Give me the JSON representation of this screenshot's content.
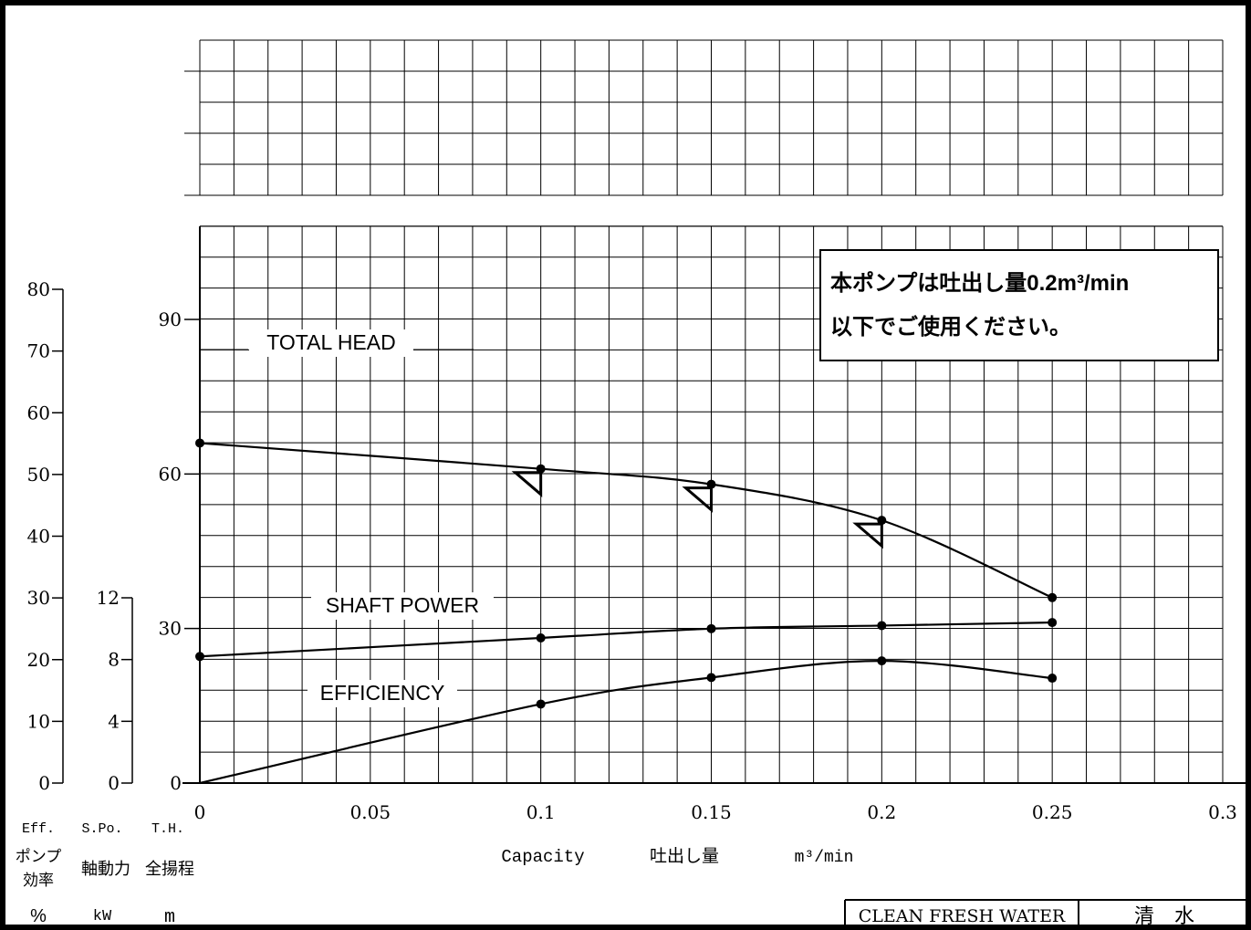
{
  "chart_data": {
    "type": "line",
    "x": [
      0,
      0.1,
      0.15,
      0.2,
      0.25
    ],
    "x_ticks": [
      "0",
      "0.05",
      "0.1",
      "0.15",
      "0.2",
      "0.25",
      "0.3"
    ],
    "xlim": [
      0,
      0.3
    ],
    "xlabel_en": "Capacity",
    "xlabel_jp": "吐出し量",
    "xlabel_unit": "m³/min",
    "axes": {
      "eff": {
        "ticks": [
          "0",
          "10",
          "20",
          "30",
          "40",
          "50",
          "60",
          "70",
          "80"
        ],
        "label": "Eff.",
        "jp": "ポンプ効率",
        "unit": "%",
        "range": [
          0,
          80
        ]
      },
      "spo": {
        "ticks": [
          "0",
          "4",
          "8",
          "12"
        ],
        "label": "S.Po.",
        "jp": "軸動力",
        "unit": "kW",
        "range": [
          0,
          12
        ]
      },
      "th": {
        "ticks": [
          "0",
          "30",
          "60",
          "90"
        ],
        "label": "T.H.",
        "jp": "全揚程",
        "unit": "m",
        "range": [
          0,
          90
        ]
      }
    },
    "series": [
      {
        "name": "TOTAL HEAD",
        "axis": "th",
        "values": [
          66,
          61,
          58,
          51,
          36
        ]
      },
      {
        "name": "SHAFT POWER",
        "axis": "spo",
        "values": [
          8.2,
          9.4,
          10.0,
          10.2,
          10.4
        ]
      },
      {
        "name": "EFFICIENCY",
        "axis": "eff",
        "values": [
          0,
          12.8,
          17.1,
          19.8,
          17.0
        ]
      }
    ],
    "triangle_marks_x": [
      0.1,
      0.15,
      0.2
    ]
  },
  "notice": {
    "line1": "本ポンプは吐出し量0.2m³/min",
    "line2": "以下でご使用ください。"
  },
  "footer": {
    "fluid_en": "CLEAN FRESH WATER",
    "fluid_jp": "清　水"
  }
}
